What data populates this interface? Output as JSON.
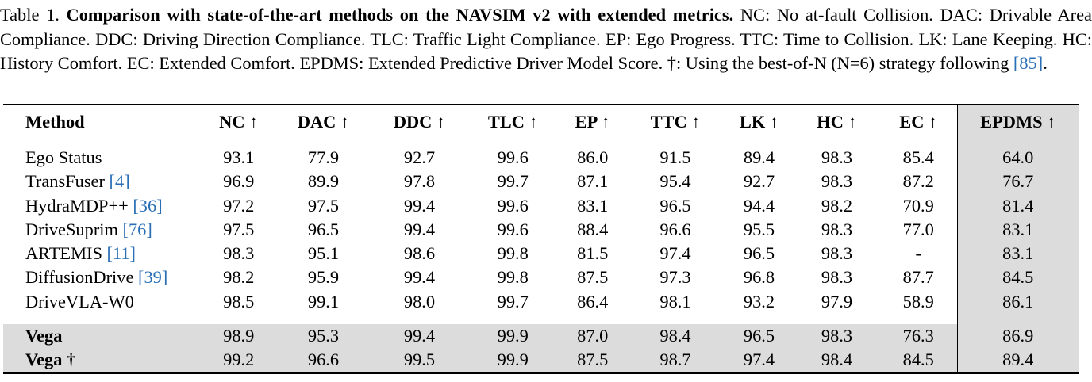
{
  "caption": {
    "label": "Table 1.",
    "lead": "Comparison with state-of-the-art methods on the NAVSIM v2 with extended metrics.",
    "body": "NC: No at-fault Collision. DAC: Drivable Area Compliance. DDC: Driving Direction Compliance. TLC: Traffic Light Compliance. EP: Ego Progress. TTC: Time to Collision. LK: Lane Keeping. HC: History Comfort. EC: Extended Comfort. EPDMS: Extended Predictive Driver Model Score. †: Using the best-of-N (N=6) strategy following",
    "ref": "[85]",
    "end": "."
  },
  "table": {
    "headers": [
      "Method",
      "NC ↑",
      "DAC ↑",
      "DDC ↑",
      "TLC ↑",
      "EP ↑",
      "TTC ↑",
      "LK ↑",
      "HC ↑",
      "EC ↑",
      "EPDMS ↑"
    ],
    "rows": [
      {
        "name": "Ego Status",
        "ref": "",
        "values": [
          "93.1",
          "77.9",
          "92.7",
          "99.6",
          "86.0",
          "91.5",
          "89.4",
          "98.3",
          "85.4",
          "64.0"
        ],
        "bold": []
      },
      {
        "name": "TransFuser",
        "ref": "[4]",
        "values": [
          "96.9",
          "89.9",
          "97.8",
          "99.7",
          "87.1",
          "95.4",
          "92.7",
          "98.3",
          "87.2",
          "76.7"
        ],
        "bold": []
      },
      {
        "name": "HydraMDP++",
        "ref": "[36]",
        "values": [
          "97.2",
          "97.5",
          "99.4",
          "99.6",
          "83.1",
          "96.5",
          "94.4",
          "98.2",
          "70.9",
          "81.4"
        ],
        "bold": []
      },
      {
        "name": "DriveSuprim",
        "ref": "[76]",
        "values": [
          "97.5",
          "96.5",
          "99.4",
          "99.6",
          "88.4",
          "96.6",
          "95.5",
          "98.3",
          "77.0",
          "83.1"
        ],
        "bold": [
          4
        ]
      },
      {
        "name": "ARTEMIS",
        "ref": "[11]",
        "values": [
          "98.3",
          "95.1",
          "98.6",
          "99.8",
          "81.5",
          "97.4",
          "96.5",
          "98.3",
          "-",
          "83.1"
        ],
        "bold": []
      },
      {
        "name": "DiffusionDrive",
        "ref": "[39]",
        "values": [
          "98.2",
          "95.9",
          "99.4",
          "99.8",
          "87.5",
          "97.3",
          "96.8",
          "98.3",
          "87.7",
          "84.5"
        ],
        "bold": [
          8
        ]
      },
      {
        "name": "DriveVLA-W0",
        "ref": "",
        "values": [
          "98.5",
          "99.1",
          "98.0",
          "99.7",
          "86.4",
          "98.1",
          "93.2",
          "97.9",
          "58.9",
          "86.1"
        ],
        "bold": [
          1
        ]
      }
    ],
    "ours": [
      {
        "name": "Vega",
        "values": [
          "98.9",
          "95.3",
          "99.4",
          "99.9",
          "87.0",
          "98.4",
          "96.5",
          "98.3",
          "76.3",
          "86.9"
        ],
        "bold": [
          3
        ]
      },
      {
        "name": "Vega †",
        "values": [
          "99.2",
          "96.6",
          "99.5",
          "99.9",
          "87.5",
          "98.7",
          "97.4",
          "98.4",
          "84.5",
          "89.4"
        ],
        "bold": [
          0,
          2,
          3,
          5,
          6,
          7,
          9
        ]
      }
    ]
  }
}
